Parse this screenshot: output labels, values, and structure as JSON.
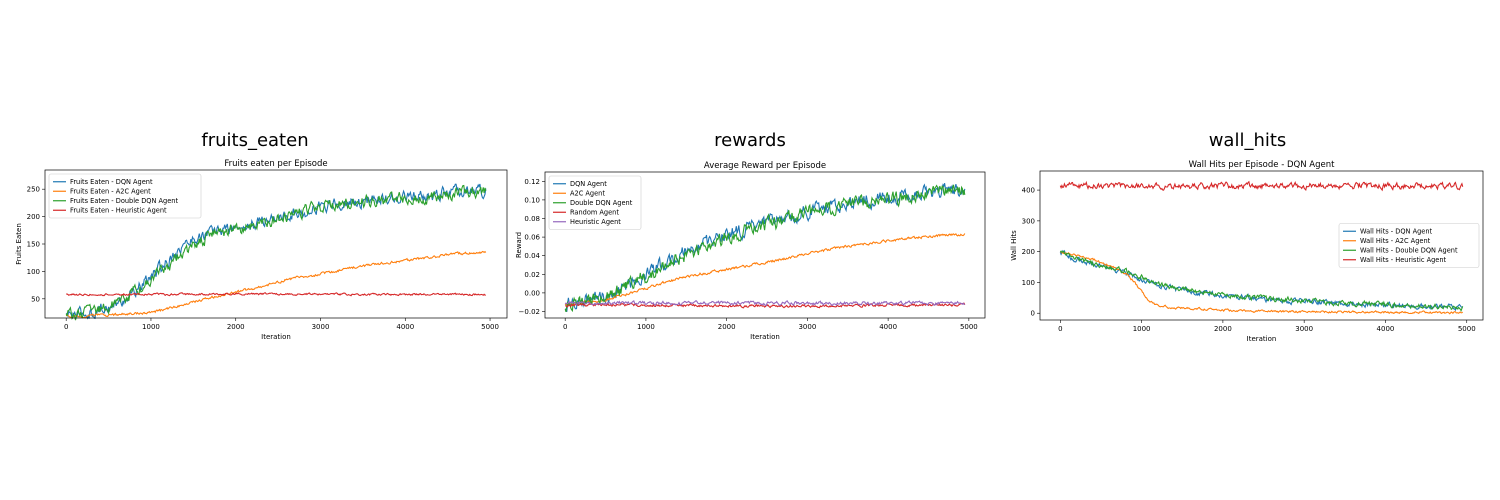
{
  "panel_titles": [
    "fruits_eaten",
    "rewards",
    "wall_hits"
  ],
  "chart_data": [
    {
      "type": "line",
      "title": "Fruits eaten per Episode",
      "xlabel": "Iteration",
      "ylabel": "Fruits Eaten",
      "xlim": [
        -250,
        5200
      ],
      "ylim": [
        15,
        285
      ],
      "xticks": [
        0,
        1000,
        2000,
        3000,
        4000,
        5000
      ],
      "yticks": [
        50,
        100,
        150,
        200,
        250
      ],
      "grid": false,
      "legend_position": "top-left",
      "series": [
        {
          "name": "Fruits Eaten - DQN Agent",
          "color": "#1f77b4",
          "x": [
            0,
            300,
            600,
            900,
            1100,
            1300,
            1500,
            1800,
            2100,
            2400,
            2700,
            3000,
            3300,
            3600,
            3900,
            4200,
            4500,
            4800,
            4950
          ],
          "y": [
            20,
            25,
            40,
            75,
            105,
            135,
            160,
            175,
            180,
            195,
            205,
            220,
            225,
            230,
            235,
            235,
            245,
            250,
            245
          ],
          "noise": 9
        },
        {
          "name": "Fruits Eaten - A2C Agent",
          "color": "#ff7f0e",
          "x": [
            0,
            500,
            1000,
            1200,
            1400,
            1700,
            2000,
            2300,
            2600,
            3000,
            3300,
            3600,
            4000,
            4300,
            4600,
            4950
          ],
          "y": [
            18,
            20,
            25,
            32,
            40,
            52,
            62,
            72,
            85,
            95,
            105,
            112,
            120,
            126,
            132,
            136
          ],
          "noise": 2
        },
        {
          "name": "Fruits Eaten - Double DQN Agent",
          "color": "#2ca02c",
          "x": [
            0,
            300,
            600,
            900,
            1100,
            1300,
            1500,
            1800,
            2100,
            2400,
            2700,
            3000,
            3300,
            3600,
            3900,
            4200,
            4500,
            4800,
            4950
          ],
          "y": [
            20,
            25,
            42,
            72,
            95,
            125,
            150,
            170,
            180,
            192,
            205,
            218,
            225,
            228,
            232,
            235,
            240,
            245,
            250
          ],
          "noise": 9
        },
        {
          "name": "Fruits Eaten - Heuristic Agent",
          "color": "#d62728",
          "x": [
            0,
            1000,
            2000,
            3000,
            4000,
            4950
          ],
          "y": [
            58,
            58,
            59,
            58,
            58,
            58
          ],
          "noise": 1.5
        }
      ]
    },
    {
      "type": "line",
      "title": "Average Reward per Episode",
      "xlabel": "Iteration",
      "ylabel": "Reward",
      "xlim": [
        -250,
        5200
      ],
      "ylim": [
        -0.027,
        0.13
      ],
      "xticks": [
        0,
        1000,
        2000,
        3000,
        4000,
        5000
      ],
      "yticks": [
        -0.02,
        0.0,
        0.02,
        0.04,
        0.06,
        0.08,
        0.1,
        0.12
      ],
      "ytick_labels": [
        "−0.02",
        "0.00",
        "0.02",
        "0.04",
        "0.06",
        "0.08",
        "0.10",
        "0.12"
      ],
      "grid": false,
      "legend_position": "top-left",
      "series": [
        {
          "name": "DQN Agent",
          "color": "#1f77b4",
          "x": [
            0,
            300,
            600,
            900,
            1200,
            1500,
            1800,
            2100,
            2400,
            2700,
            3000,
            3300,
            3600,
            3900,
            4200,
            4500,
            4800,
            4950
          ],
          "y": [
            -0.012,
            -0.008,
            0.0,
            0.015,
            0.03,
            0.045,
            0.055,
            0.065,
            0.072,
            0.08,
            0.088,
            0.093,
            0.098,
            0.102,
            0.105,
            0.108,
            0.11,
            0.108
          ],
          "noise": 0.006
        },
        {
          "name": "A2C Agent",
          "color": "#ff7f0e",
          "x": [
            0,
            500,
            1000,
            1500,
            2000,
            2500,
            3000,
            3500,
            4000,
            4500,
            4950
          ],
          "y": [
            -0.012,
            -0.008,
            0.005,
            0.018,
            0.025,
            0.033,
            0.042,
            0.05,
            0.056,
            0.061,
            0.063
          ],
          "noise": 0.0012
        },
        {
          "name": "Double DQN Agent",
          "color": "#2ca02c",
          "x": [
            0,
            300,
            600,
            900,
            1200,
            1500,
            1800,
            2100,
            2400,
            2700,
            3000,
            3300,
            3600,
            3900,
            4200,
            4500,
            4800,
            4950
          ],
          "y": [
            -0.012,
            -0.008,
            0.0,
            0.013,
            0.028,
            0.042,
            0.052,
            0.063,
            0.07,
            0.078,
            0.086,
            0.092,
            0.097,
            0.1,
            0.103,
            0.107,
            0.11,
            0.11
          ],
          "noise": 0.006
        },
        {
          "name": "Random Agent",
          "color": "#d62728",
          "x": [
            0,
            1000,
            2000,
            3000,
            4000,
            4950
          ],
          "y": [
            -0.013,
            -0.013,
            -0.014,
            -0.014,
            -0.013,
            -0.013
          ],
          "noise": 0.0012
        },
        {
          "name": "Heuristic Agent",
          "color": "#9467bd",
          "x": [
            0,
            1000,
            2000,
            3000,
            4000,
            4950
          ],
          "y": [
            -0.011,
            -0.011,
            -0.011,
            -0.011,
            -0.011,
            -0.011
          ],
          "noise": 0.0015
        }
      ]
    },
    {
      "type": "line",
      "title": "Wall Hits per Episode - DQN Agent",
      "xlabel": "Iteration",
      "ylabel": "Wall Hits",
      "xlim": [
        -250,
        5200
      ],
      "ylim": [
        -22,
        462
      ],
      "xticks": [
        0,
        1000,
        2000,
        3000,
        4000,
        5000
      ],
      "yticks": [
        0,
        100,
        200,
        300,
        400
      ],
      "grid": false,
      "legend_position": "center-right",
      "series": [
        {
          "name": "Wall Hits - DQN Agent",
          "color": "#1f77b4",
          "x": [
            0,
            200,
            400,
            600,
            800,
            1000,
            1200,
            1500,
            1800,
            2100,
            2500,
            3000,
            3500,
            4000,
            4500,
            4950
          ],
          "y": [
            200,
            175,
            160,
            145,
            130,
            110,
            90,
            75,
            65,
            55,
            45,
            38,
            32,
            27,
            22,
            20
          ],
          "noise": 7
        },
        {
          "name": "Wall Hits - A2C Agent",
          "color": "#ff7f0e",
          "x": [
            0,
            200,
            400,
            600,
            800,
            900,
            1000,
            1100,
            1200,
            1400,
            1700,
            2000,
            2500,
            3000,
            4000,
            4950
          ],
          "y": [
            200,
            190,
            175,
            155,
            130,
            105,
            70,
            40,
            25,
            18,
            15,
            10,
            6,
            5,
            3,
            2
          ],
          "noise": 3
        },
        {
          "name": "Wall Hits - Double DQN Agent",
          "color": "#2ca02c",
          "x": [
            0,
            200,
            400,
            600,
            800,
            1000,
            1200,
            1500,
            1800,
            2100,
            2500,
            3000,
            3500,
            4000,
            4500,
            4950
          ],
          "y": [
            200,
            178,
            162,
            150,
            138,
            118,
            95,
            78,
            68,
            58,
            48,
            40,
            33,
            28,
            22,
            18
          ],
          "noise": 7
        },
        {
          "name": "Wall Hits - Heuristic Agent",
          "color": "#d62728",
          "x": [
            0,
            1000,
            2000,
            3000,
            4000,
            4950
          ],
          "y": [
            415,
            412,
            413,
            414,
            413,
            414
          ],
          "noise": 8
        }
      ]
    }
  ]
}
